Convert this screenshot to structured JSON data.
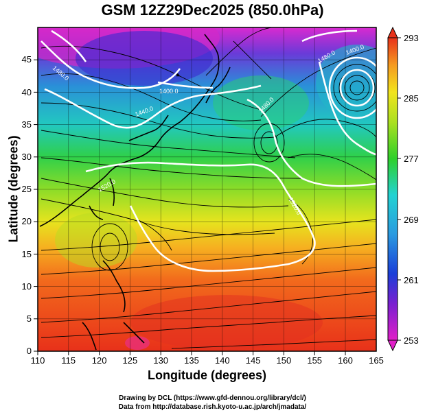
{
  "title": "GSM 12Z29Dec2025 (850.0hPa)",
  "xlabel": "Longitude (degrees)",
  "ylabel": "Latitude  (degrees)",
  "x_ticks": [
    "110",
    "115",
    "120",
    "125",
    "130",
    "135",
    "140",
    "145",
    "150",
    "155",
    "160",
    "165"
  ],
  "y_ticks": [
    "0",
    "5",
    "10",
    "15",
    "20",
    "25",
    "30",
    "35",
    "40",
    "45"
  ],
  "colorbar_ticks": [
    "293",
    "285",
    "277",
    "269",
    "261",
    "253"
  ],
  "contour_labels": [
    "1480.0",
    "1400.0",
    "1440.0",
    "1480.0",
    "1520.0",
    "1520.0",
    "1480.0",
    "1400.0"
  ],
  "credits": {
    "line1": "Drawing by DCL (https://www.gfd-dennou.org/library/dcl/)",
    "line2": "Data from http://database.rish.kyoto-u.ac.jp/arch/jmadata/"
  },
  "colors": {
    "warm": "#e8311a",
    "orange": "#f59a20",
    "yellow": "#e8e81e",
    "green": "#2ed02a",
    "cyan": "#22d2d2",
    "blue": "#1a3ed8",
    "magenta": "#e020c8"
  }
}
